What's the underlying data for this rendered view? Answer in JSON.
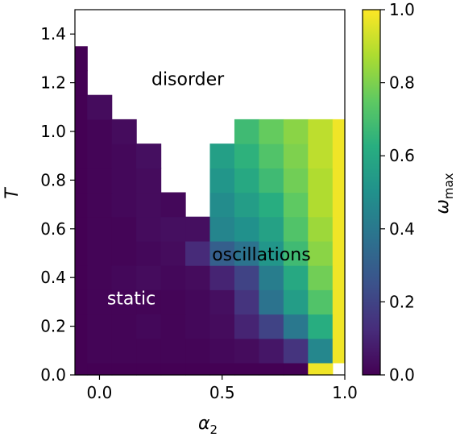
{
  "chart_data": {
    "type": "heatmap",
    "title": "",
    "xlabel": "α",
    "xlabel_sub": "2",
    "ylabel": "T",
    "colorbar_label": "ω",
    "colorbar_label_sub": "max",
    "colormap": "viridis",
    "xlim": [
      -0.1,
      1.0
    ],
    "ylim": [
      0.0,
      1.5
    ],
    "clim": [
      0.0,
      1.0
    ],
    "grid": false,
    "x_ticks": [
      {
        "value": 0.0,
        "label": "0.0"
      },
      {
        "value": 0.5,
        "label": "0.5"
      },
      {
        "value": 1.0,
        "label": "1.0"
      }
    ],
    "y_ticks": [
      {
        "value": 0.0,
        "label": "0.0"
      },
      {
        "value": 0.2,
        "label": "0.2"
      },
      {
        "value": 0.4,
        "label": "0.4"
      },
      {
        "value": 0.6,
        "label": "0.6"
      },
      {
        "value": 0.8,
        "label": "0.8"
      },
      {
        "value": 1.0,
        "label": "1.0"
      },
      {
        "value": 1.2,
        "label": "1.2"
      },
      {
        "value": 1.4,
        "label": "1.4"
      }
    ],
    "colorbar_ticks": [
      {
        "value": 0.0,
        "label": "0.0"
      },
      {
        "value": 0.2,
        "label": "0.2"
      },
      {
        "value": 0.4,
        "label": "0.4"
      },
      {
        "value": 0.6,
        "label": "0.6"
      },
      {
        "value": 0.8,
        "label": "0.8"
      },
      {
        "value": 1.0,
        "label": "1.0"
      }
    ],
    "x_centers": [
      -0.1,
      0.0,
      0.1,
      0.2,
      0.3,
      0.4,
      0.5,
      0.6,
      0.7,
      0.8,
      0.9,
      1.0
    ],
    "cell_width": 0.1,
    "y_centers": [
      0.0,
      0.1,
      0.2,
      0.3,
      0.4,
      0.5,
      0.6,
      0.7,
      0.8,
      0.9,
      1.0,
      1.1,
      1.2,
      1.3
    ],
    "cell_height": 0.1,
    "values": [
      [
        0.0,
        0.0,
        0.0,
        0.0,
        0.0,
        0.0,
        0.0,
        0.0,
        0.0,
        0.0,
        0.98,
        null
      ],
      [
        0.0,
        0.01,
        0.01,
        0.01,
        0.01,
        0.01,
        0.02,
        0.03,
        0.06,
        0.15,
        0.46,
        0.98
      ],
      [
        0.0,
        0.01,
        0.01,
        0.02,
        0.01,
        0.02,
        0.03,
        0.1,
        0.2,
        0.4,
        0.62,
        0.98
      ],
      [
        0.0,
        0.01,
        0.01,
        0.01,
        0.01,
        0.02,
        0.04,
        0.15,
        0.38,
        0.55,
        0.72,
        0.98
      ],
      [
        0.0,
        0.01,
        0.02,
        0.03,
        0.02,
        0.03,
        0.1,
        0.2,
        0.42,
        0.6,
        0.78,
        0.98
      ],
      [
        0.0,
        0.01,
        0.01,
        0.02,
        0.03,
        0.12,
        0.3,
        0.38,
        0.52,
        0.68,
        0.82,
        0.98
      ],
      [
        0.0,
        0.01,
        0.01,
        0.03,
        0.04,
        0.04,
        0.45,
        0.5,
        0.57,
        0.72,
        0.85,
        0.98
      ],
      [
        0.0,
        0.01,
        0.02,
        0.03,
        0.02,
        null,
        0.48,
        0.55,
        0.62,
        0.75,
        0.88,
        0.98
      ],
      [
        0.0,
        0.01,
        0.02,
        0.03,
        null,
        null,
        0.52,
        0.6,
        0.68,
        0.78,
        0.88,
        0.98
      ],
      [
        0.0,
        0.01,
        0.02,
        0.04,
        null,
        null,
        0.56,
        0.64,
        0.72,
        0.8,
        0.9,
        0.98
      ],
      [
        0.0,
        0.01,
        0.03,
        null,
        null,
        null,
        null,
        0.68,
        0.76,
        0.82,
        0.9,
        0.98
      ],
      [
        0.0,
        0.03,
        null,
        null,
        null,
        null,
        null,
        null,
        null,
        null,
        null,
        null
      ],
      [
        0.0,
        null,
        null,
        null,
        null,
        null,
        null,
        null,
        null,
        null,
        null,
        null
      ],
      [
        0.0,
        null,
        null,
        null,
        null,
        null,
        null,
        null,
        null,
        null,
        null,
        null
      ]
    ],
    "annotations": [
      {
        "text": "disorder",
        "x": 0.36,
        "y": 1.21,
        "color": "#000000"
      },
      {
        "text": "oscillations",
        "x": 0.66,
        "y": 0.49,
        "color": "#000000"
      },
      {
        "text": "static",
        "x": 0.13,
        "y": 0.31,
        "color": "#ffffff"
      }
    ]
  }
}
